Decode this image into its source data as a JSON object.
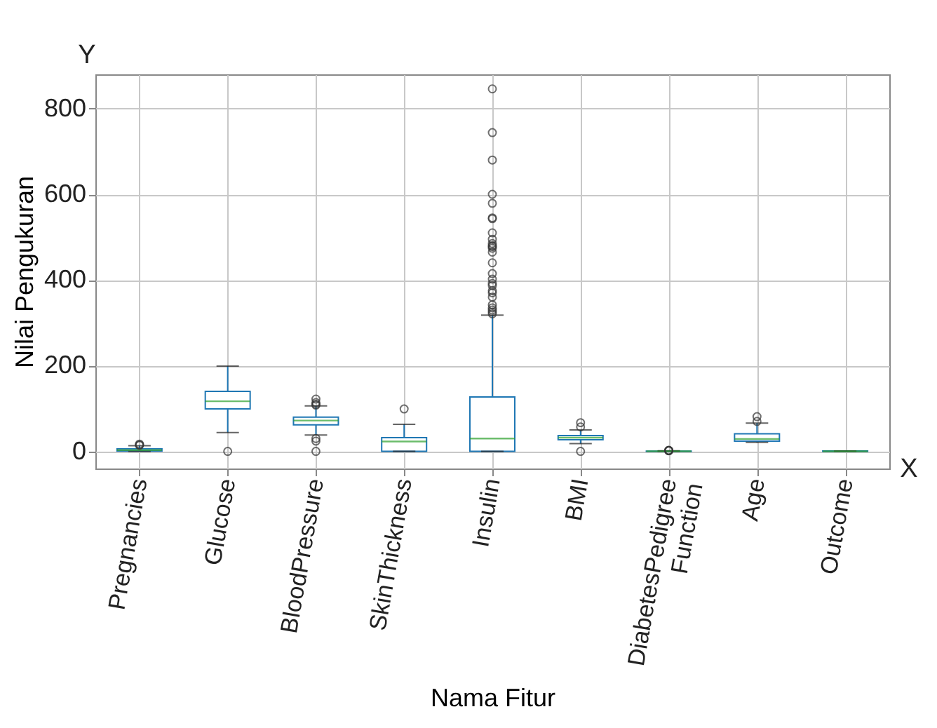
{
  "chart_data": {
    "type": "box",
    "xlabel": "Nama Fitur",
    "ylabel": "Nilai Pengukuran",
    "annotations": [
      "Y",
      "X"
    ],
    "categories": [
      "Pregnancies",
      "Glucose",
      "BloodPressure",
      "SkinThickness",
      "Insulin",
      "BMI",
      "DiabetesPedigree Function",
      "Age",
      "Outcome"
    ],
    "boxes": [
      {
        "low": 0,
        "q1": 1,
        "median": 3,
        "q3": 6,
        "high": 13,
        "outliers": [
          14,
          15,
          17
        ]
      },
      {
        "low": 44,
        "q1": 99,
        "median": 117,
        "q3": 140,
        "high": 199,
        "outliers": [
          0
        ]
      },
      {
        "low": 38,
        "q1": 62,
        "median": 72,
        "q3": 80,
        "high": 106,
        "outliers": [
          0,
          24,
          30,
          108,
          110,
          114,
          122
        ]
      },
      {
        "low": 0,
        "q1": 0,
        "median": 23,
        "q3": 32,
        "high": 63,
        "outliers": [
          99
        ]
      },
      {
        "low": 0,
        "q1": 0,
        "median": 30,
        "q3": 127,
        "high": 318,
        "outliers": [
          321,
          325,
          330,
          335,
          342,
          360,
          370,
          375,
          387,
          392,
          402,
          415,
          440,
          465,
          474,
          478,
          480,
          485,
          495,
          510,
          543,
          545,
          579,
          600,
          680,
          744,
          846
        ]
      },
      {
        "low": 18,
        "q1": 27,
        "median": 32,
        "q3": 37,
        "high": 50,
        "outliers": [
          0,
          57,
          67
        ]
      },
      {
        "low": 0.08,
        "q1": 0.24,
        "median": 0.37,
        "q3": 0.63,
        "high": 1.19,
        "outliers": [
          1.3,
          1.6,
          2.1,
          2.4
        ]
      },
      {
        "low": 21,
        "q1": 24,
        "median": 29,
        "q3": 41,
        "high": 66,
        "outliers": [
          70,
          81
        ]
      },
      {
        "low": 0,
        "q1": 0,
        "median": 0,
        "q3": 1,
        "high": 1
      }
    ],
    "ylim": [
      -40,
      880
    ],
    "yticks": [
      0,
      200,
      400,
      600,
      800
    ],
    "grid": true
  }
}
